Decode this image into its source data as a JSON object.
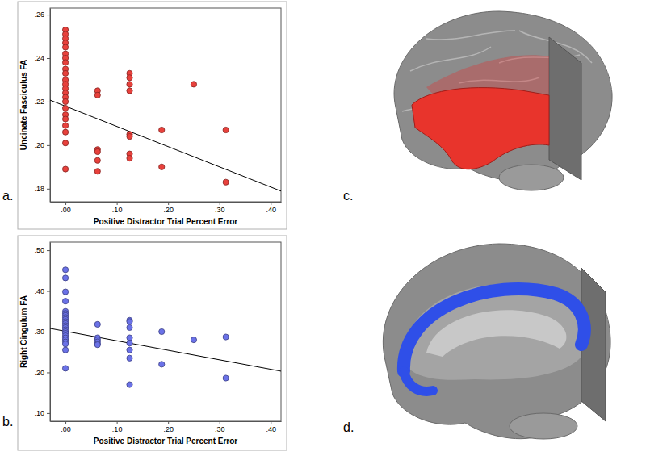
{
  "chart_data": [
    {
      "type": "scatter",
      "annotations": [
        "a."
      ],
      "x_label": "Positive Distractor Trial Percent Error",
      "y_label": "Uncinate Fasciculus FA",
      "color": "#e8413c",
      "xlim": [
        -0.03,
        0.42
      ],
      "ylim": [
        0.174,
        0.263
      ],
      "xticks": [
        {
          "value": 0,
          "label": ".00"
        },
        {
          "value": 0.1,
          "label": ".10"
        },
        {
          "value": 0.2,
          "label": ".20"
        },
        {
          "value": 0.3,
          "label": ".30"
        },
        {
          "value": 0.4,
          "label": ".40"
        }
      ],
      "yticks": [
        {
          "value": 0.18,
          "label": ".18"
        },
        {
          "value": 0.2,
          "label": ".20"
        },
        {
          "value": 0.22,
          "label": ".22"
        },
        {
          "value": 0.24,
          "label": ".24"
        },
        {
          "value": 0.26,
          "label": ".26"
        }
      ],
      "x": [
        0,
        0,
        0,
        0,
        0,
        0,
        0,
        0,
        0,
        0,
        0,
        0,
        0,
        0,
        0,
        0,
        0,
        0,
        0,
        0,
        0,
        0,
        0,
        0.0625,
        0.0625,
        0.0625,
        0.0625,
        0.0625,
        0.0625,
        0.125,
        0.125,
        0.125,
        0.125,
        0.125,
        0.125,
        0.125,
        0.125,
        0.1875,
        0.1875,
        0.25,
        0.3125,
        0.3125
      ],
      "values": [
        0.253,
        0.251,
        0.249,
        0.247,
        0.245,
        0.242,
        0.24,
        0.238,
        0.235,
        0.233,
        0.23,
        0.228,
        0.226,
        0.224,
        0.222,
        0.22,
        0.217,
        0.214,
        0.212,
        0.209,
        0.206,
        0.201,
        0.189,
        0.225,
        0.223,
        0.198,
        0.197,
        0.193,
        0.188,
        0.233,
        0.231,
        0.228,
        0.225,
        0.205,
        0.204,
        0.196,
        0.194,
        0.207,
        0.19,
        0.228,
        0.207,
        0.183
      ],
      "trend_line": {
        "x": [
          -0.03,
          0.42
        ],
        "values": [
          0.2207,
          0.1789
        ]
      }
    },
    {
      "type": "scatter",
      "annotations": [
        "b."
      ],
      "x_label": "Positive Distractor Trial Percent Error",
      "y_label": "Right Cingulum FA",
      "color": "#6b72e8",
      "xlim": [
        -0.03,
        0.42
      ],
      "ylim": [
        0.08,
        0.52
      ],
      "xticks": [
        {
          "value": 0,
          "label": ".00"
        },
        {
          "value": 0.1,
          "label": ".10"
        },
        {
          "value": 0.2,
          "label": ".20"
        },
        {
          "value": 0.3,
          "label": ".30"
        },
        {
          "value": 0.4,
          "label": ".40"
        }
      ],
      "yticks": [
        {
          "value": 0.1,
          "label": ".10"
        },
        {
          "value": 0.2,
          "label": ".20"
        },
        {
          "value": 0.3,
          "label": ".30"
        },
        {
          "value": 0.4,
          "label": ".40"
        },
        {
          "value": 0.5,
          "label": ".50"
        }
      ],
      "x": [
        0,
        0,
        0,
        0,
        0,
        0,
        0,
        0,
        0,
        0,
        0,
        0,
        0,
        0,
        0,
        0,
        0,
        0,
        0,
        0,
        0,
        0,
        0,
        0.0625,
        0.0625,
        0.0625,
        0.0625,
        0.0625,
        0.0625,
        0.125,
        0.125,
        0.125,
        0.125,
        0.125,
        0.125,
        0.125,
        0.125,
        0.1875,
        0.1875,
        0.25,
        0.3125,
        0.3125
      ],
      "values": [
        0.452,
        0.432,
        0.398,
        0.375,
        0.35,
        0.345,
        0.34,
        0.335,
        0.33,
        0.325,
        0.32,
        0.315,
        0.31,
        0.305,
        0.3,
        0.296,
        0.29,
        0.285,
        0.28,
        0.275,
        0.27,
        0.255,
        0.21,
        0.318,
        0.285,
        0.28,
        0.275,
        0.27,
        0.268,
        0.328,
        0.325,
        0.31,
        0.285,
        0.272,
        0.255,
        0.235,
        0.17,
        0.3,
        0.22,
        0.28,
        0.287,
        0.186
      ],
      "trend_line": {
        "x": [
          -0.03,
          0.42
        ],
        "values": [
          0.308,
          0.203
        ]
      }
    }
  ],
  "images": [
    {
      "label": "c."
    },
    {
      "label": "d."
    }
  ]
}
